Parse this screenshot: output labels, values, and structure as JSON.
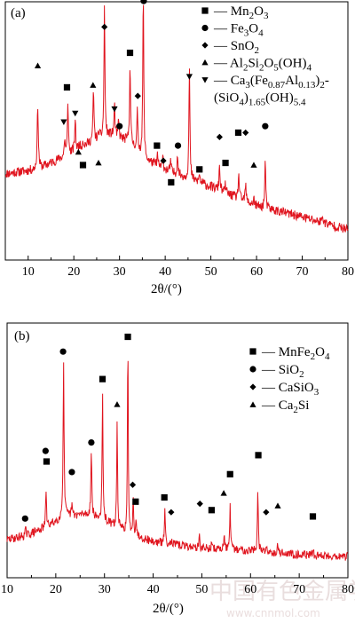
{
  "chart_data": [
    {
      "type": "line",
      "panel_label": "(a)",
      "xlabel": "2θ/(°)",
      "xlim": [
        5,
        80
      ],
      "xticks": [
        10,
        20,
        30,
        40,
        50,
        60,
        70,
        80
      ],
      "line_color": "#e0141e",
      "legend_position": "top-right",
      "legend": [
        {
          "marker": "square",
          "label": "— Mn2O3",
          "html": "— Mn<tspan dy='4' font-size='11'>2</tspan><tspan dy='-4'>O</tspan><tspan dy='4' font-size='11'>3</tspan>"
        },
        {
          "marker": "circle",
          "label": "— Fe3O4",
          "html": "— Fe<tspan dy='4' font-size='11'>3</tspan><tspan dy='-4'>O</tspan><tspan dy='4' font-size='11'>4</tspan>"
        },
        {
          "marker": "diamond",
          "label": "— SnO2",
          "html": "— SnO<tspan dy='4' font-size='11'>2</tspan>"
        },
        {
          "marker": "triangle-up",
          "label": "— Al2Si2O5(OH)4",
          "html": "— Al<tspan dy='4' font-size='11'>2</tspan><tspan dy='-4'>Si</tspan><tspan dy='4' font-size='11'>2</tspan><tspan dy='-4'>O</tspan><tspan dy='4' font-size='11'>5</tspan><tspan dy='-4'>(OH)</tspan><tspan dy='4' font-size='11'>4</tspan>"
        },
        {
          "marker": "triangle-down",
          "label": "— Ca3(Fe0.87Al0.13)2-",
          "html": "— Ca<tspan dy='4' font-size='11'>3</tspan><tspan dy='-4'>(Fe</tspan><tspan dy='4' font-size='11'>0.87</tspan><tspan dy='-4'>Al</tspan><tspan dy='4' font-size='11'>0.13</tspan><tspan dy='-4'>)</tspan><tspan dy='4' font-size='11'>2</tspan><tspan dy='-4'>-</tspan>"
        },
        {
          "marker": "none",
          "label": "(SiO4)1.65(OH)5.4",
          "html": "(SiO<tspan dy='4' font-size='11'>4</tspan><tspan dy='-4'>)</tspan><tspan dy='4' font-size='11'>1.65</tspan><tspan dy='-4'>(OH)</tspan><tspan dy='4' font-size='11'>5.4</tspan>"
        }
      ],
      "baseline": [
        [
          5,
          0.4
        ],
        [
          12,
          0.42
        ],
        [
          18,
          0.48
        ],
        [
          24,
          0.55
        ],
        [
          28,
          0.58
        ],
        [
          32,
          0.55
        ],
        [
          36,
          0.46
        ],
        [
          42,
          0.4
        ],
        [
          50,
          0.34
        ],
        [
          60,
          0.25
        ],
        [
          70,
          0.2
        ],
        [
          80,
          0.14
        ]
      ],
      "peaks": [
        {
          "x": 12.1,
          "h": 0.3,
          "w": 0.35
        },
        {
          "x": 18.0,
          "h": 0.08,
          "w": 0.3
        },
        {
          "x": 18.7,
          "h": 0.25,
          "w": 0.3
        },
        {
          "x": 20.3,
          "h": 0.15,
          "w": 0.3
        },
        {
          "x": 21.2,
          "h": 0.02,
          "w": 0.3
        },
        {
          "x": 22.0,
          "h": 0.03,
          "w": 0.3
        },
        {
          "x": 24.3,
          "h": 0.24,
          "w": 0.3
        },
        {
          "x": 25.5,
          "h": 0.03,
          "w": 0.3
        },
        {
          "x": 26.7,
          "h": 0.6,
          "w": 0.3
        },
        {
          "x": 28.9,
          "h": 0.15,
          "w": 0.3
        },
        {
          "x": 29.8,
          "h": 0.08,
          "w": 0.3
        },
        {
          "x": 32.3,
          "h": 0.37,
          "w": 0.3
        },
        {
          "x": 33.9,
          "h": 0.18,
          "w": 0.3
        },
        {
          "x": 35.2,
          "h": 0.76,
          "w": 0.3
        },
        {
          "x": 38.3,
          "h": 0.05,
          "w": 0.3
        },
        {
          "x": 39.5,
          "h": 0.05,
          "w": 0.3
        },
        {
          "x": 41.2,
          "h": 0.05,
          "w": 0.3
        },
        {
          "x": 42.7,
          "h": 0.1,
          "w": 0.3
        },
        {
          "x": 45.3,
          "h": 0.52,
          "w": 0.3
        },
        {
          "x": 47.5,
          "h": 0.04,
          "w": 0.3
        },
        {
          "x": 51.9,
          "h": 0.12,
          "w": 0.3
        },
        {
          "x": 53.2,
          "h": 0.04,
          "w": 0.3
        },
        {
          "x": 56.1,
          "h": 0.12,
          "w": 0.3
        },
        {
          "x": 57.6,
          "h": 0.08,
          "w": 0.3
        },
        {
          "x": 59.4,
          "h": 0.03,
          "w": 0.3
        },
        {
          "x": 61.9,
          "h": 0.22,
          "w": 0.3
        },
        {
          "x": 74.5,
          "h": 0.03,
          "w": 0.4
        }
      ],
      "noise": 0.022,
      "ylim": [
        0,
        1.18
      ],
      "markers": [
        {
          "shape": "triangle-up",
          "x": 12.1,
          "y": 0.9
        },
        {
          "shape": "square",
          "x": 18.5,
          "y": 0.8
        },
        {
          "shape": "triangle-down",
          "x": 17.8,
          "y": 0.64
        },
        {
          "shape": "triangle-down",
          "x": 20.3,
          "y": 0.68
        },
        {
          "shape": "triangle-up",
          "x": 21.0,
          "y": 0.5
        },
        {
          "shape": "square",
          "x": 22.0,
          "y": 0.44
        },
        {
          "shape": "triangle-up",
          "x": 24.2,
          "y": 0.81
        },
        {
          "shape": "triangle-up",
          "x": 25.4,
          "y": 0.45
        },
        {
          "shape": "diamond",
          "x": 26.7,
          "y": 1.08
        },
        {
          "shape": "triangle-down",
          "x": 28.9,
          "y": 0.7
        },
        {
          "shape": "circle",
          "x": 30.0,
          "y": 0.62
        },
        {
          "shape": "square",
          "x": 32.3,
          "y": 0.96
        },
        {
          "shape": "diamond",
          "x": 34.0,
          "y": 0.76
        },
        {
          "shape": "circle",
          "x": 35.3,
          "y": 1.2
        },
        {
          "shape": "square",
          "x": 38.2,
          "y": 0.53
        },
        {
          "shape": "diamond",
          "x": 39.6,
          "y": 0.46
        },
        {
          "shape": "square",
          "x": 41.3,
          "y": 0.36
        },
        {
          "shape": "circle",
          "x": 42.8,
          "y": 0.53
        },
        {
          "shape": "triangle-down",
          "x": 45.3,
          "y": 0.85
        },
        {
          "shape": "square",
          "x": 47.5,
          "y": 0.42
        },
        {
          "shape": "diamond",
          "x": 51.9,
          "y": 0.57
        },
        {
          "shape": "square",
          "x": 53.2,
          "y": 0.45
        },
        {
          "shape": "square",
          "x": 56.0,
          "y": 0.59
        },
        {
          "shape": "diamond",
          "x": 57.6,
          "y": 0.59
        },
        {
          "shape": "triangle-up",
          "x": 59.4,
          "y": 0.44
        },
        {
          "shape": "circle",
          "x": 61.9,
          "y": 0.62
        }
      ]
    },
    {
      "type": "line",
      "panel_label": "(b)",
      "xlabel": "2θ/(°)",
      "xlim": [
        10,
        80
      ],
      "xticks": [
        10,
        20,
        30,
        40,
        50,
        60,
        70,
        80
      ],
      "line_color": "#e0141e",
      "legend_position": "top-right",
      "legend": [
        {
          "marker": "square",
          "label": "— MnFe2O4",
          "html": "— MnFe<tspan dy='4' font-size='11'>2</tspan><tspan dy='-4'>O</tspan><tspan dy='4' font-size='11'>4</tspan>"
        },
        {
          "marker": "circle",
          "label": "— SiO2",
          "html": "— SiO<tspan dy='4' font-size='11'>2</tspan>"
        },
        {
          "marker": "diamond",
          "label": "— CaSiO3",
          "html": "— CaSiO<tspan dy='4' font-size='11'>3</tspan>"
        },
        {
          "marker": "triangle-up",
          "label": "— Ca2Si",
          "html": "— Ca<tspan dy='4' font-size='11'>2</tspan><tspan dy='-4'>Si</tspan>"
        }
      ],
      "baseline": [
        [
          10,
          0.18
        ],
        [
          14,
          0.2
        ],
        [
          18,
          0.24
        ],
        [
          22,
          0.29
        ],
        [
          26,
          0.3
        ],
        [
          30,
          0.27
        ],
        [
          34,
          0.22
        ],
        [
          40,
          0.17
        ],
        [
          50,
          0.14
        ],
        [
          60,
          0.13
        ],
        [
          70,
          0.11
        ],
        [
          80,
          0.1
        ]
      ],
      "peaks": [
        {
          "x": 13.8,
          "h": 0.03,
          "w": 0.3
        },
        {
          "x": 18.0,
          "h": 0.18,
          "w": 0.25
        },
        {
          "x": 21.6,
          "h": 0.73,
          "w": 0.28
        },
        {
          "x": 23.3,
          "h": 0.05,
          "w": 0.3
        },
        {
          "x": 27.3,
          "h": 0.3,
          "w": 0.3
        },
        {
          "x": 29.6,
          "h": 0.6,
          "w": 0.25
        },
        {
          "x": 32.6,
          "h": 0.5,
          "w": 0.25
        },
        {
          "x": 34.8,
          "h": 0.95,
          "w": 0.22
        },
        {
          "x": 35.9,
          "h": 0.18,
          "w": 0.25
        },
        {
          "x": 36.5,
          "h": 0.08,
          "w": 0.25
        },
        {
          "x": 42.4,
          "h": 0.17,
          "w": 0.25
        },
        {
          "x": 43.7,
          "h": 0.03,
          "w": 0.25
        },
        {
          "x": 49.5,
          "h": 0.05,
          "w": 0.25
        },
        {
          "x": 52.0,
          "h": 0.02,
          "w": 0.25
        },
        {
          "x": 54.6,
          "h": 0.09,
          "w": 0.25
        },
        {
          "x": 55.8,
          "h": 0.2,
          "w": 0.25
        },
        {
          "x": 61.5,
          "h": 0.28,
          "w": 0.25
        },
        {
          "x": 63.2,
          "h": 0.03,
          "w": 0.25
        },
        {
          "x": 65.6,
          "h": 0.04,
          "w": 0.25
        },
        {
          "x": 72.8,
          "h": 0.02,
          "w": 0.3
        }
      ],
      "noise": 0.02,
      "ylim": [
        0,
        1.18
      ],
      "markers": [
        {
          "shape": "circle",
          "x": 13.7,
          "y": 0.28
        },
        {
          "shape": "circle",
          "x": 17.9,
          "y": 0.6
        },
        {
          "shape": "square",
          "x": 18.1,
          "y": 0.55
        },
        {
          "shape": "circle",
          "x": 21.5,
          "y": 1.07
        },
        {
          "shape": "circle",
          "x": 23.3,
          "y": 0.5
        },
        {
          "shape": "circle",
          "x": 27.3,
          "y": 0.64
        },
        {
          "shape": "square",
          "x": 29.6,
          "y": 0.94
        },
        {
          "shape": "triangle-up",
          "x": 32.6,
          "y": 0.82
        },
        {
          "shape": "square",
          "x": 34.8,
          "y": 1.14
        },
        {
          "shape": "diamond",
          "x": 35.8,
          "y": 0.44
        },
        {
          "shape": "square",
          "x": 36.4,
          "y": 0.36
        },
        {
          "shape": "square",
          "x": 42.3,
          "y": 0.38
        },
        {
          "shape": "diamond",
          "x": 43.7,
          "y": 0.31
        },
        {
          "shape": "diamond",
          "x": 49.6,
          "y": 0.35
        },
        {
          "shape": "square",
          "x": 52.0,
          "y": 0.32
        },
        {
          "shape": "triangle-up",
          "x": 54.5,
          "y": 0.4
        },
        {
          "shape": "square",
          "x": 55.8,
          "y": 0.49
        },
        {
          "shape": "square",
          "x": 61.6,
          "y": 0.58
        },
        {
          "shape": "diamond",
          "x": 63.2,
          "y": 0.31
        },
        {
          "shape": "triangle-up",
          "x": 65.6,
          "y": 0.34
        },
        {
          "shape": "square",
          "x": 72.8,
          "y": 0.29
        }
      ]
    }
  ],
  "watermark": {
    "main": "中国有色金属学报",
    "sub": "www.cnnmol.com"
  }
}
